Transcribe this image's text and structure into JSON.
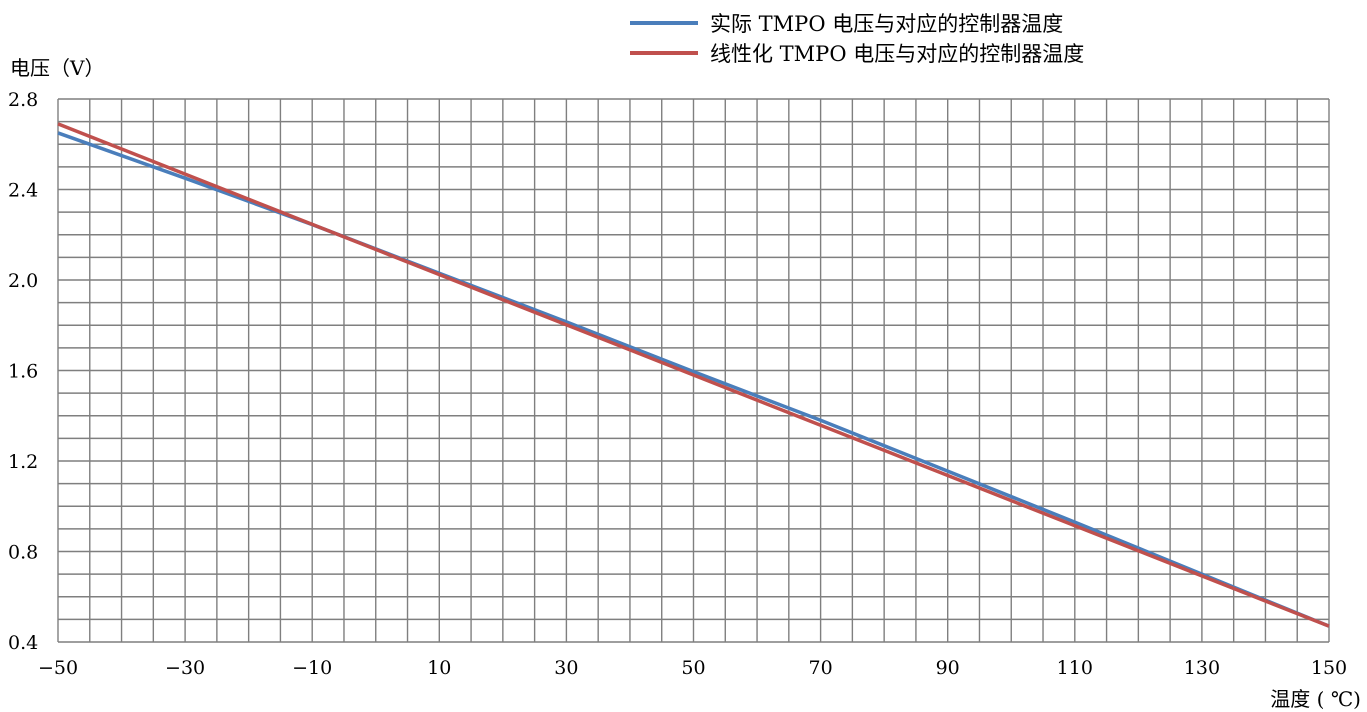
{
  "chart_data": {
    "type": "line",
    "title": "",
    "xlabel": "温度 ( ℃)",
    "ylabel": "电压（V）",
    "xlim": [
      -50,
      150
    ],
    "ylim": [
      0.4,
      2.8
    ],
    "x_ticks": [
      "−50",
      "−30",
      "−10",
      "10",
      "30",
      "50",
      "70",
      "90",
      "110",
      "130",
      "150"
    ],
    "y_ticks": [
      "0.4",
      "0.8",
      "1.2",
      "1.6",
      "2.0",
      "2.4",
      "2.8"
    ],
    "grid": true,
    "legend_position": "top-right",
    "series": [
      {
        "name": "实际 TMPO 电压与对应的控制器温度",
        "color": "#4a7ebb",
        "x": [
          -50,
          -30,
          -10,
          10,
          30,
          50,
          70,
          90,
          110,
          130,
          150
        ],
        "y": [
          2.65,
          2.45,
          2.245,
          2.03,
          1.815,
          1.595,
          1.38,
          1.155,
          0.93,
          0.7,
          0.47
        ]
      },
      {
        "name": "线性化 TMPO 电压与对应的控制器温度",
        "color": "#c0504d",
        "x": [
          -50,
          150
        ],
        "y": [
          2.69,
          0.47
        ]
      }
    ]
  }
}
